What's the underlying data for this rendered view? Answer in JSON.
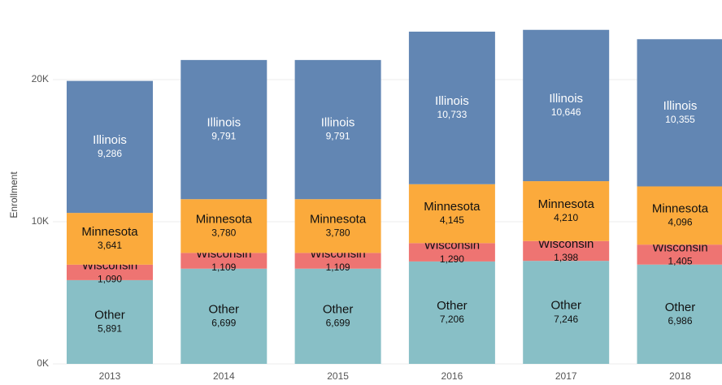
{
  "chart_data": {
    "type": "stacked-bar",
    "y_label": "Enrollment",
    "categories": [
      "2013",
      "2014",
      "2015",
      "2016",
      "2017",
      "2018"
    ],
    "series": [
      {
        "name": "Other",
        "color": "#88bfc6",
        "values": [
          5891,
          6699,
          6699,
          7206,
          7246,
          6986
        ],
        "value_labels": [
          "5,891",
          "6,699",
          "6,699",
          "7,206",
          "7,246",
          "6,986"
        ]
      },
      {
        "name": "Wisconsin",
        "color": "#ee7472",
        "values": [
          1090,
          1109,
          1109,
          1290,
          1398,
          1405
        ],
        "value_labels": [
          "1,090",
          "1,109",
          "1,109",
          "1,290",
          "1,398",
          "1,405"
        ]
      },
      {
        "name": "Minnesota",
        "color": "#fbaa3c",
        "values": [
          3641,
          3780,
          3780,
          4145,
          4210,
          4096
        ],
        "value_labels": [
          "3,641",
          "3,780",
          "3,780",
          "4,145",
          "4,210",
          "4,096"
        ]
      },
      {
        "name": "Illinois",
        "color": "#6286b3",
        "values": [
          9286,
          9791,
          9791,
          10733,
          10646,
          10355
        ],
        "value_labels": [
          "9,286",
          "9,791",
          "9,791",
          "10,733",
          "10,646",
          "10,355"
        ]
      }
    ],
    "ylim": [
      0,
      25000
    ],
    "yticks": [
      {
        "value": 0,
        "label": "0K"
      },
      {
        "value": 10000,
        "label": "10K"
      },
      {
        "value": 20000,
        "label": "20K"
      }
    ],
    "grid": true
  }
}
